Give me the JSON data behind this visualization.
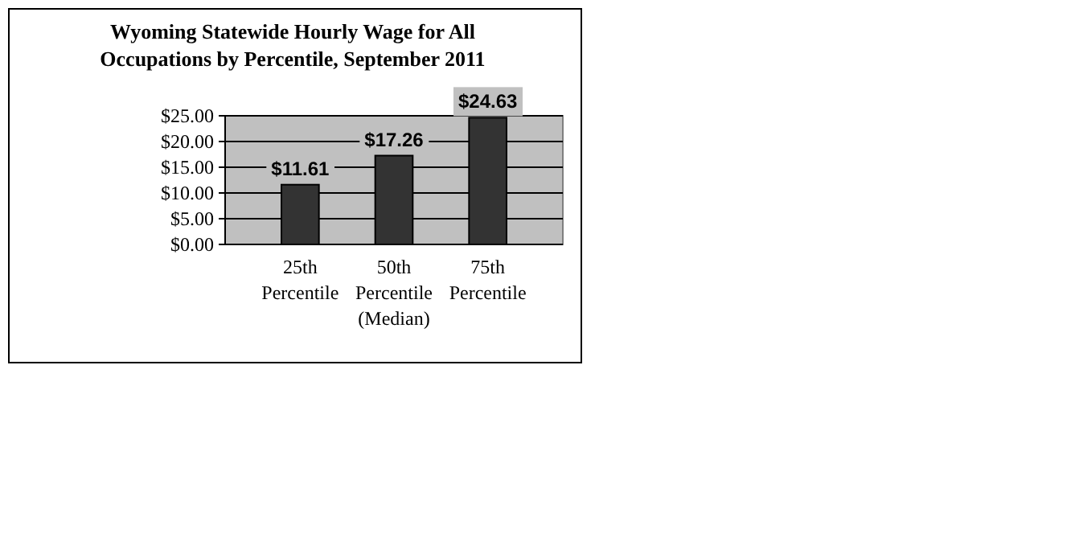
{
  "chart_data": {
    "type": "bar",
    "title": "Wyoming Statewide Hourly Wage for All\nOccupations by Percentile, September 2011",
    "categories": [
      "25th\nPercentile",
      "50th\nPercentile\n(Median)",
      "75th\nPercentile"
    ],
    "values": [
      11.61,
      17.26,
      24.63
    ],
    "color": "#333333",
    "value_labels": [
      "$11.61",
      "$17.26",
      "$24.63"
    ],
    "ylim": [
      0,
      25
    ],
    "yticks": [
      {
        "value": 0,
        "label": "$0.00"
      },
      {
        "value": 5,
        "label": "$5.00"
      },
      {
        "value": 10,
        "label": "$10.00"
      },
      {
        "value": 15,
        "label": "$15.00"
      },
      {
        "value": 20,
        "label": "$20.00"
      },
      {
        "value": 25,
        "label": "$25.00"
      }
    ],
    "grid": true
  }
}
